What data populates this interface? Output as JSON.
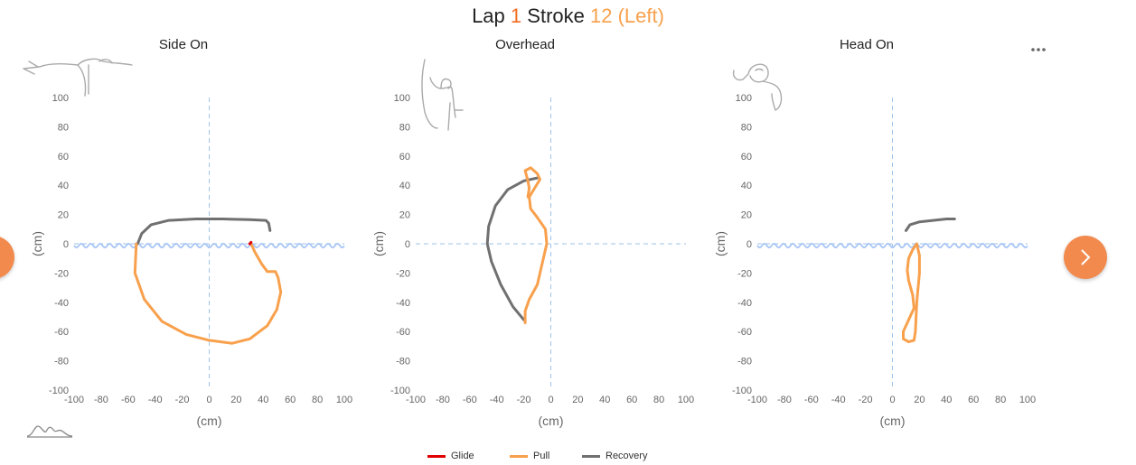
{
  "title": {
    "lap_word": "Lap",
    "lap_number": "1",
    "stroke_word": "Stroke",
    "stroke_info": "12 (Left)"
  },
  "nav": {
    "prev_icon": "chevron-left-icon",
    "next_icon": "chevron-right-icon",
    "more_icon": "more-icon"
  },
  "colors": {
    "glide": "#e00000",
    "pull": "#f8a04c",
    "recovery": "#707070",
    "water": "#a9c6f5",
    "axis_dash": "#9dc3ea",
    "accent": "#f28a4e"
  },
  "legend": [
    {
      "key": "glide",
      "label": "Glide",
      "color": "#e00000"
    },
    {
      "key": "pull",
      "label": "Pull",
      "color": "#f8a04c"
    },
    {
      "key": "recovery",
      "label": "Recovery",
      "color": "#707070"
    }
  ],
  "chart_data": [
    {
      "type": "line",
      "title": "Side On",
      "icon": "swimmer-side-icon",
      "xlabel": "(cm)",
      "ylabel": "(cm)",
      "xlim": [
        -100,
        100
      ],
      "ylim": [
        -100,
        100
      ],
      "xticks": [
        -100,
        -80,
        -60,
        -40,
        -20,
        0,
        20,
        40,
        60,
        80,
        100
      ],
      "yticks": [
        100,
        80,
        60,
        40,
        20,
        0,
        -20,
        -40,
        -60,
        -80,
        -100
      ],
      "water_line": true,
      "series": [
        {
          "name": "Recovery",
          "color": "#707070",
          "points": [
            [
              -53,
              0
            ],
            [
              -50,
              7
            ],
            [
              -43,
              13
            ],
            [
              -30,
              16
            ],
            [
              -10,
              17
            ],
            [
              10,
              17
            ],
            [
              30,
              16.5
            ],
            [
              42,
              16
            ],
            [
              44,
              14
            ],
            [
              45,
              9
            ]
          ]
        },
        {
          "name": "Pull",
          "color": "#f8a04c",
          "points": [
            [
              31,
              0
            ],
            [
              34,
              -6
            ],
            [
              39,
              -14
            ],
            [
              43,
              -19
            ],
            [
              49,
              -19
            ],
            [
              51,
              -23
            ],
            [
              53,
              -33
            ],
            [
              50,
              -45
            ],
            [
              43,
              -56
            ],
            [
              30,
              -65
            ],
            [
              17,
              -68
            ],
            [
              0,
              -66
            ],
            [
              -17,
              -62
            ],
            [
              -35,
              -53
            ],
            [
              -48,
              -38
            ],
            [
              -55,
              -20
            ],
            [
              -54,
              0
            ]
          ]
        },
        {
          "name": "Glide",
          "color": "#e00000",
          "points": [
            [
              30,
              0
            ],
            [
              31,
              1
            ]
          ]
        }
      ]
    },
    {
      "type": "line",
      "title": "Overhead",
      "icon": "swimmer-overhead-icon",
      "xlabel": "(cm)",
      "ylabel": "(cm)",
      "xlim": [
        -100,
        100
      ],
      "ylim": [
        -100,
        100
      ],
      "xticks": [
        -100,
        -80,
        -60,
        -40,
        -20,
        0,
        20,
        40,
        60,
        80,
        100
      ],
      "yticks": [
        100,
        80,
        60,
        40,
        20,
        0,
        -20,
        -40,
        -60,
        -80,
        -100
      ],
      "water_line": false,
      "series": [
        {
          "name": "Recovery",
          "color": "#707070",
          "points": [
            [
              -20,
              -52
            ],
            [
              -28,
              -43
            ],
            [
              -37,
              -28
            ],
            [
              -44,
              -12
            ],
            [
              -47,
              0
            ],
            [
              -46,
              12
            ],
            [
              -41,
              26
            ],
            [
              -32,
              37
            ],
            [
              -20,
              43
            ],
            [
              -10,
              45
            ]
          ]
        },
        {
          "name": "Pull",
          "color": "#f8a04c",
          "points": [
            [
              -19,
              -54
            ],
            [
              -19,
              -46
            ],
            [
              -16,
              -38
            ],
            [
              -10,
              -28
            ],
            [
              -6,
              -12
            ],
            [
              -3,
              0
            ],
            [
              -4,
              10
            ],
            [
              -10,
              18
            ],
            [
              -15,
              24
            ],
            [
              -16,
              32
            ],
            [
              -12,
              38
            ],
            [
              -8,
              44
            ],
            [
              -10,
              48
            ],
            [
              -15,
              52
            ],
            [
              -19,
              50
            ],
            [
              -17,
              43
            ],
            [
              -16,
              38
            ],
            [
              -17,
              32
            ]
          ]
        },
        {
          "name": "Glide",
          "color": "#e00000",
          "points": []
        }
      ]
    },
    {
      "type": "line",
      "title": "Head On",
      "icon": "swimmer-front-icon",
      "xlabel": "(cm)",
      "ylabel": "(cm)",
      "xlim": [
        -100,
        100
      ],
      "ylim": [
        -100,
        100
      ],
      "xticks": [
        -100,
        -80,
        -60,
        -40,
        -20,
        0,
        20,
        40,
        60,
        80,
        100
      ],
      "yticks": [
        100,
        80,
        60,
        40,
        20,
        0,
        -20,
        -40,
        -60,
        -80,
        -100
      ],
      "water_line": true,
      "series": [
        {
          "name": "Recovery",
          "color": "#707070",
          "points": [
            [
              10,
              9
            ],
            [
              13,
              13
            ],
            [
              20,
              15
            ],
            [
              30,
              16
            ],
            [
              40,
              17
            ],
            [
              46,
              17
            ]
          ]
        },
        {
          "name": "Pull",
          "color": "#f8a04c",
          "points": [
            [
              18,
              0
            ],
            [
              20,
              -8
            ],
            [
              20,
              -20
            ],
            [
              18,
              -40
            ],
            [
              17,
              -60
            ],
            [
              16,
              -66
            ],
            [
              12,
              -67
            ],
            [
              8,
              -65
            ],
            [
              8,
              -60
            ],
            [
              12,
              -52
            ],
            [
              16,
              -44
            ],
            [
              15,
              -35
            ],
            [
              12,
              -25
            ],
            [
              11,
              -18
            ],
            [
              12,
              -10
            ],
            [
              15,
              -4
            ],
            [
              18,
              0
            ]
          ]
        },
        {
          "name": "Glide",
          "color": "#e00000",
          "points": []
        }
      ]
    }
  ]
}
